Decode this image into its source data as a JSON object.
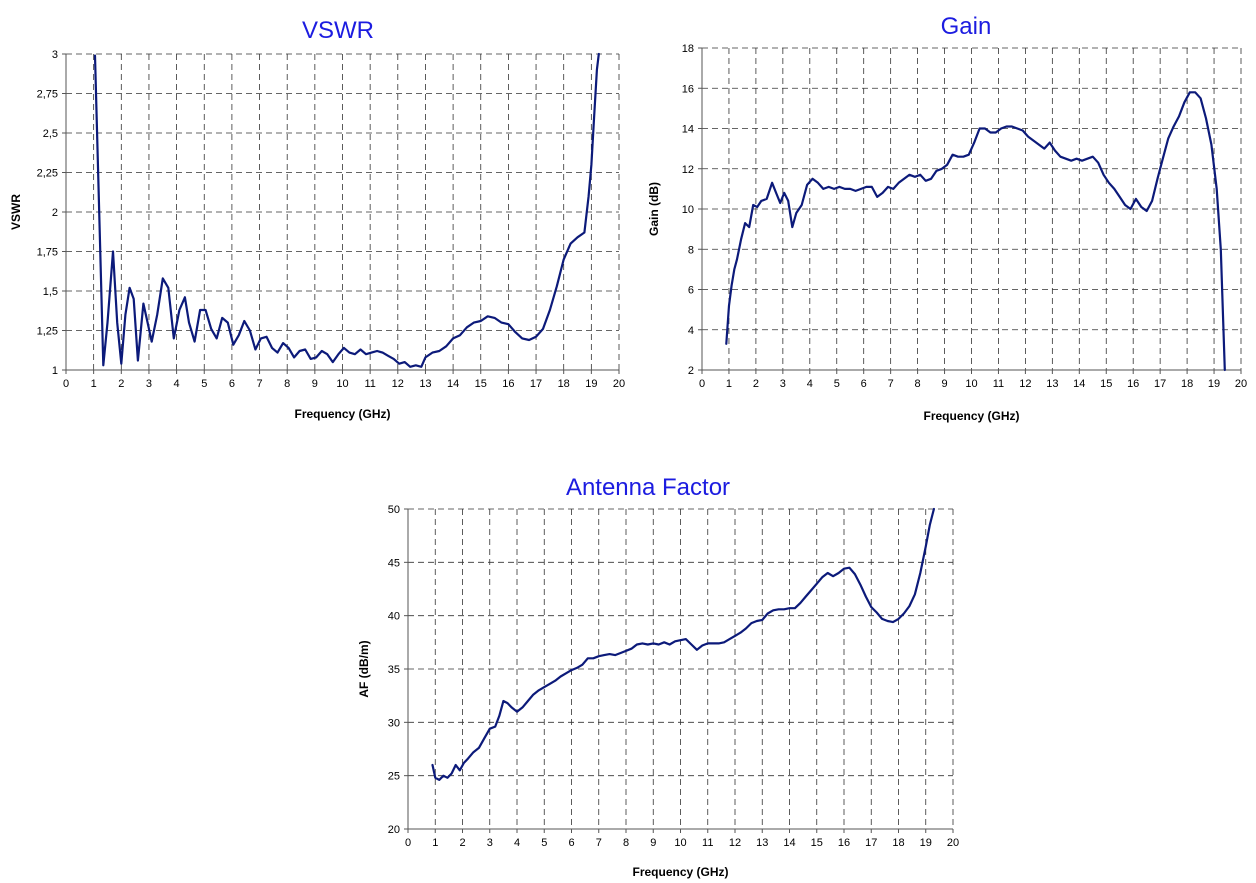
{
  "colors": {
    "title": "#1c1ce0",
    "series": "#0c1a7a",
    "grid": "#333333"
  },
  "chart_data": [
    {
      "id": "vswr",
      "type": "line",
      "title": "VSWR",
      "xlabel": "Frequency  (GHz)",
      "ylabel": "VSWR",
      "xlim": [
        0,
        20
      ],
      "ylim": [
        1,
        3
      ],
      "xticks": [
        "0",
        "1",
        "2",
        "3",
        "4",
        "5",
        "6",
        "7",
        "8",
        "9",
        "10",
        "11",
        "12",
        "13",
        "14",
        "15",
        "16",
        "17",
        "18",
        "19",
        "20"
      ],
      "yticks": [
        "1",
        "1,25",
        "1,5",
        "1,75",
        "2",
        "2,25",
        "2,5",
        "2,75",
        "3"
      ],
      "grid": true,
      "series": [
        {
          "x": [
            1.05,
            1.2,
            1.35,
            1.5,
            1.7,
            1.85,
            2.0,
            2.15,
            2.3,
            2.45,
            2.6,
            2.8,
            2.95,
            3.1,
            3.3,
            3.5,
            3.7,
            3.9,
            4.1,
            4.3,
            4.45,
            4.65,
            4.85,
            5.05,
            5.25,
            5.45,
            5.65,
            5.85,
            6.05,
            6.25,
            6.45,
            6.65,
            6.85,
            7.05,
            7.25,
            7.45,
            7.65,
            7.85,
            8.05,
            8.25,
            8.45,
            8.65,
            8.85,
            9.05,
            9.25,
            9.45,
            9.65,
            9.85,
            10.05,
            10.25,
            10.45,
            10.65,
            10.85,
            11.05,
            11.25,
            11.45,
            11.65,
            11.85,
            12.05,
            12.25,
            12.45,
            12.65,
            12.85,
            13.0,
            13.25,
            13.5,
            13.75,
            14.0,
            14.25,
            14.5,
            14.75,
            15.0,
            15.25,
            15.5,
            15.75,
            16.0,
            16.25,
            16.5,
            16.75,
            17.0,
            17.25,
            17.5,
            17.75,
            18.0,
            18.25,
            18.5,
            18.75,
            18.9,
            19.0,
            19.1,
            19.2,
            19.27
          ],
          "y": [
            2.99,
            2.0,
            1.03,
            1.3,
            1.75,
            1.3,
            1.04,
            1.35,
            1.52,
            1.45,
            1.06,
            1.42,
            1.3,
            1.18,
            1.35,
            1.58,
            1.52,
            1.2,
            1.38,
            1.46,
            1.3,
            1.18,
            1.38,
            1.38,
            1.26,
            1.2,
            1.33,
            1.3,
            1.16,
            1.22,
            1.31,
            1.25,
            1.13,
            1.2,
            1.21,
            1.14,
            1.11,
            1.17,
            1.14,
            1.08,
            1.12,
            1.13,
            1.07,
            1.08,
            1.12,
            1.1,
            1.05,
            1.1,
            1.14,
            1.11,
            1.1,
            1.13,
            1.1,
            1.11,
            1.12,
            1.11,
            1.09,
            1.07,
            1.04,
            1.05,
            1.02,
            1.03,
            1.02,
            1.08,
            1.11,
            1.12,
            1.15,
            1.2,
            1.22,
            1.27,
            1.3,
            1.31,
            1.34,
            1.33,
            1.3,
            1.29,
            1.24,
            1.2,
            1.19,
            1.21,
            1.26,
            1.38,
            1.53,
            1.7,
            1.8,
            1.84,
            1.87,
            2.1,
            2.3,
            2.6,
            2.9,
            3.0
          ]
        }
      ]
    },
    {
      "id": "gain",
      "type": "line",
      "title": "Gain",
      "xlabel": "Frequency  (GHz)",
      "ylabel": "Gain (dB)",
      "xlim": [
        0,
        20
      ],
      "ylim": [
        2,
        18
      ],
      "xticks": [
        "0",
        "1",
        "2",
        "3",
        "4",
        "5",
        "6",
        "7",
        "8",
        "9",
        "10",
        "11",
        "12",
        "13",
        "14",
        "15",
        "16",
        "17",
        "18",
        "19",
        "20"
      ],
      "yticks": [
        "2",
        "4",
        "6",
        "8",
        "10",
        "12",
        "14",
        "16",
        "18"
      ],
      "grid": true,
      "series": [
        {
          "x": [
            0.9,
            1.0,
            1.1,
            1.2,
            1.3,
            1.45,
            1.6,
            1.75,
            1.9,
            2.05,
            2.2,
            2.4,
            2.6,
            2.75,
            2.9,
            3.05,
            3.2,
            3.35,
            3.5,
            3.7,
            3.9,
            4.1,
            4.3,
            4.5,
            4.7,
            4.9,
            5.1,
            5.3,
            5.5,
            5.7,
            5.9,
            6.1,
            6.3,
            6.5,
            6.7,
            6.9,
            7.1,
            7.3,
            7.5,
            7.7,
            7.9,
            8.1,
            8.3,
            8.5,
            8.7,
            8.9,
            9.1,
            9.3,
            9.5,
            9.7,
            9.9,
            10.1,
            10.3,
            10.5,
            10.7,
            10.9,
            11.1,
            11.3,
            11.5,
            11.7,
            11.9,
            12.1,
            12.3,
            12.5,
            12.7,
            12.9,
            13.1,
            13.3,
            13.5,
            13.7,
            13.9,
            14.1,
            14.3,
            14.5,
            14.7,
            14.9,
            15.1,
            15.3,
            15.5,
            15.7,
            15.9,
            16.1,
            16.3,
            16.5,
            16.7,
            16.9,
            17.1,
            17.3,
            17.5,
            17.7,
            17.9,
            18.1,
            18.3,
            18.5,
            18.7,
            18.9,
            19.1,
            19.25,
            19.4
          ],
          "y": [
            3.3,
            5.2,
            6.2,
            7.0,
            7.5,
            8.5,
            9.3,
            9.1,
            10.2,
            10.1,
            10.4,
            10.5,
            11.3,
            10.8,
            10.3,
            10.8,
            10.4,
            9.1,
            9.8,
            10.2,
            11.2,
            11.5,
            11.3,
            11.0,
            11.1,
            11.0,
            11.1,
            11.0,
            11.0,
            10.9,
            11.0,
            11.1,
            11.1,
            10.6,
            10.8,
            11.1,
            11.0,
            11.3,
            11.5,
            11.7,
            11.6,
            11.7,
            11.4,
            11.5,
            11.9,
            12.0,
            12.2,
            12.7,
            12.6,
            12.6,
            12.7,
            13.3,
            14.0,
            14.0,
            13.8,
            13.8,
            14.0,
            14.1,
            14.1,
            14.0,
            13.9,
            13.6,
            13.4,
            13.2,
            13.0,
            13.3,
            12.9,
            12.6,
            12.5,
            12.4,
            12.5,
            12.4,
            12.5,
            12.6,
            12.3,
            11.7,
            11.3,
            11.0,
            10.6,
            10.2,
            10.0,
            10.5,
            10.1,
            9.9,
            10.4,
            11.5,
            12.5,
            13.5,
            14.1,
            14.6,
            15.3,
            15.8,
            15.8,
            15.5,
            14.5,
            13.2,
            11.0,
            8.0,
            2.0
          ]
        }
      ]
    },
    {
      "id": "af",
      "type": "line",
      "title": "Antenna Factor",
      "xlabel": "Frequency  (GHz)",
      "ylabel": "AF  (dB/m)",
      "xlim": [
        0,
        20
      ],
      "ylim": [
        20,
        50
      ],
      "xticks": [
        "0",
        "1",
        "2",
        "3",
        "4",
        "5",
        "6",
        "7",
        "8",
        "9",
        "10",
        "11",
        "12",
        "13",
        "14",
        "15",
        "16",
        "17",
        "18",
        "19",
        "20"
      ],
      "yticks": [
        "20",
        "25",
        "30",
        "35",
        "40",
        "45",
        "50"
      ],
      "grid": true,
      "series": [
        {
          "x": [
            0.9,
            1.0,
            1.15,
            1.3,
            1.45,
            1.6,
            1.75,
            1.9,
            2.05,
            2.2,
            2.4,
            2.6,
            2.8,
            3.0,
            3.2,
            3.35,
            3.5,
            3.65,
            3.8,
            4.0,
            4.2,
            4.4,
            4.6,
            4.8,
            5.0,
            5.2,
            5.4,
            5.6,
            5.8,
            6.0,
            6.2,
            6.4,
            6.6,
            6.8,
            7.0,
            7.2,
            7.4,
            7.6,
            7.8,
            8.0,
            8.2,
            8.4,
            8.6,
            8.8,
            9.0,
            9.2,
            9.4,
            9.6,
            9.8,
            10.0,
            10.2,
            10.4,
            10.6,
            10.8,
            11.0,
            11.2,
            11.4,
            11.6,
            11.8,
            12.0,
            12.2,
            12.4,
            12.6,
            12.8,
            13.0,
            13.2,
            13.4,
            13.6,
            13.8,
            14.0,
            14.2,
            14.4,
            14.6,
            14.8,
            15.0,
            15.2,
            15.4,
            15.6,
            15.8,
            16.0,
            16.2,
            16.4,
            16.6,
            16.8,
            17.0,
            17.2,
            17.4,
            17.6,
            17.8,
            18.0,
            18.2,
            18.4,
            18.6,
            18.8,
            19.0,
            19.15,
            19.3
          ],
          "y": [
            26.0,
            24.8,
            24.6,
            25.0,
            24.8,
            25.2,
            26.0,
            25.5,
            26.2,
            26.6,
            27.2,
            27.6,
            28.5,
            29.4,
            29.6,
            30.6,
            32.0,
            31.8,
            31.4,
            31.0,
            31.4,
            32.0,
            32.6,
            33.0,
            33.3,
            33.6,
            33.9,
            34.3,
            34.6,
            34.9,
            35.1,
            35.4,
            36.0,
            36.0,
            36.2,
            36.3,
            36.4,
            36.3,
            36.5,
            36.7,
            36.9,
            37.3,
            37.4,
            37.3,
            37.4,
            37.3,
            37.5,
            37.3,
            37.6,
            37.7,
            37.8,
            37.3,
            36.8,
            37.2,
            37.4,
            37.4,
            37.4,
            37.5,
            37.8,
            38.1,
            38.4,
            38.8,
            39.3,
            39.5,
            39.6,
            40.2,
            40.5,
            40.6,
            40.6,
            40.7,
            40.7,
            41.2,
            41.8,
            42.4,
            43.0,
            43.6,
            44.0,
            43.7,
            44.0,
            44.4,
            44.5,
            43.9,
            42.9,
            41.8,
            40.8,
            40.3,
            39.7,
            39.5,
            39.4,
            39.7,
            40.2,
            40.9,
            42.0,
            44.0,
            46.5,
            48.5,
            50.0
          ]
        }
      ]
    }
  ]
}
